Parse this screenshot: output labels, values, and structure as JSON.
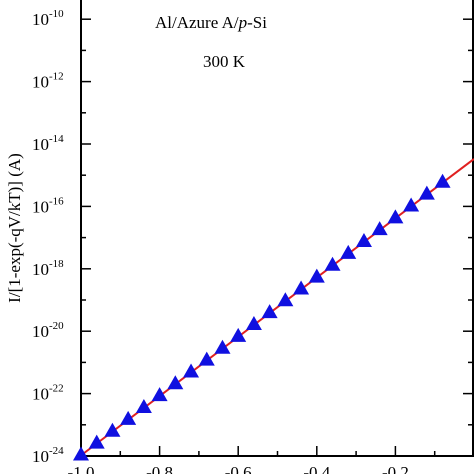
{
  "chart_data": {
    "type": "scatter",
    "ylabel": "I/[1-exp(-qV/kT)] (A)",
    "xlabel": "",
    "annotations": {
      "sample_prefix": "Al/Azure A/",
      "sample_italic": "p",
      "sample_suffix": "-Si",
      "temperature": "300 K"
    },
    "xlim": [
      -1.0,
      0.0
    ],
    "ylim_log10": [
      -24,
      -9
    ],
    "yscale": "log",
    "x_ticks": [
      -1.0,
      -0.8,
      -0.6,
      -0.4,
      -0.2
    ],
    "x_tick_labels": [
      "-1.0",
      "-0.8",
      "-0.6",
      "-0.4",
      "-0.2"
    ],
    "y_ticks_log10": [
      -24,
      -22,
      -20,
      -18,
      -16,
      -14,
      -12,
      -10
    ],
    "y_tick_base": "10",
    "y_tick_exponents": [
      "-24",
      "-22",
      "-20",
      "-18",
      "-16",
      "-14",
      "-12",
      "-10"
    ],
    "grid": false,
    "series": [
      {
        "marker": "triangle",
        "color": "#1010e0",
        "x": [
          -1.0,
          -0.96,
          -0.92,
          -0.88,
          -0.84,
          -0.8,
          -0.76,
          -0.72,
          -0.68,
          -0.64,
          -0.6,
          -0.56,
          -0.52,
          -0.48,
          -0.44,
          -0.4,
          -0.36,
          -0.32,
          -0.28,
          -0.24,
          -0.2,
          -0.16,
          -0.12,
          -0.08
        ],
        "y_log10": [
          -23.95,
          -23.57,
          -23.19,
          -22.81,
          -22.43,
          -22.05,
          -21.67,
          -21.29,
          -20.91,
          -20.53,
          -20.15,
          -19.77,
          -19.39,
          -19.01,
          -18.63,
          -18.25,
          -17.87,
          -17.49,
          -17.11,
          -16.73,
          -16.35,
          -15.97,
          -15.59,
          -15.21
        ]
      },
      {
        "type": "line",
        "color": "#e02020",
        "x": [
          -1.0,
          0.0
        ],
        "y_log10": [
          -23.98,
          -14.48
        ]
      }
    ]
  }
}
